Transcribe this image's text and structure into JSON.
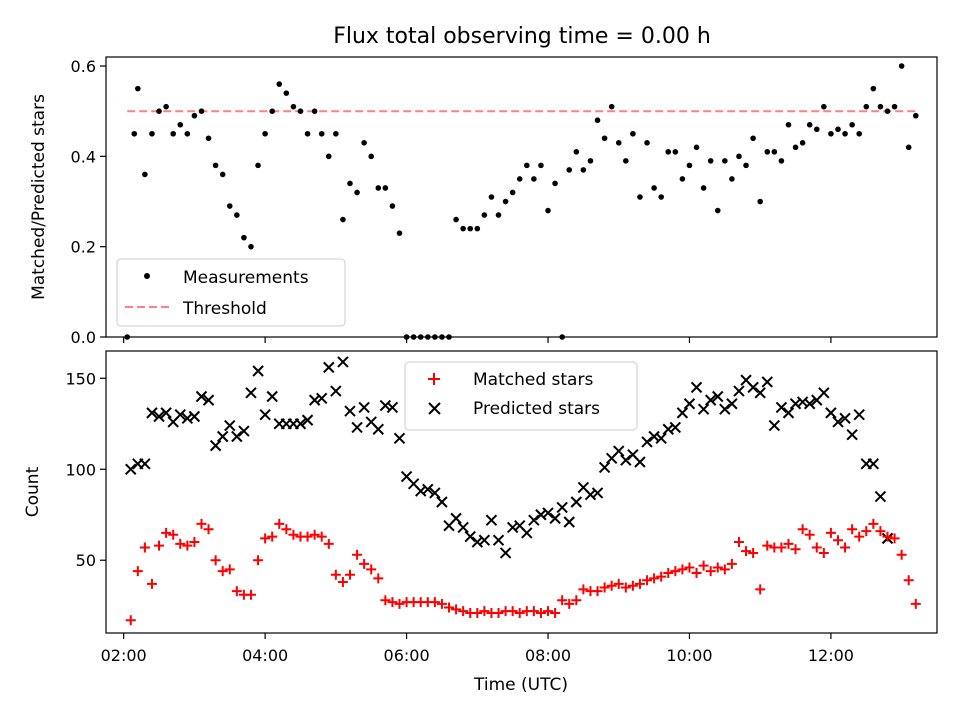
{
  "chart_data": [
    {
      "type": "scatter",
      "title": "Flux total observing time = 0.00 h",
      "xlabel": "",
      "ylabel": "Matched/Predicted stars",
      "xlim": [
        2.0,
        13.0
      ],
      "ylim": [
        0.0,
        0.62
      ],
      "yticks": [
        {
          "value": 0.0,
          "label": "0.0"
        },
        {
          "value": 0.2,
          "label": "0.2"
        },
        {
          "value": 0.4,
          "label": "0.4"
        },
        {
          "value": 0.6,
          "label": "0.6"
        }
      ],
      "legend_position": "lower-left",
      "series": [
        {
          "name": "Measurements",
          "marker": "dot",
          "color": "#000000",
          "x": [
            2.05,
            2.15,
            2.2,
            2.3,
            2.4,
            2.5,
            2.6,
            2.7,
            2.8,
            2.9,
            3.0,
            3.1,
            3.2,
            3.3,
            3.4,
            3.5,
            3.6,
            3.7,
            3.8,
            3.9,
            4.0,
            4.1,
            4.2,
            4.3,
            4.4,
            4.5,
            4.6,
            4.7,
            4.8,
            4.9,
            5.0,
            5.1,
            5.2,
            5.3,
            5.4,
            5.5,
            5.6,
            5.7,
            5.8,
            5.9,
            6.0,
            6.1,
            6.2,
            6.3,
            6.4,
            6.5,
            6.6,
            6.7,
            6.8,
            6.9,
            7.0,
            7.1,
            7.2,
            7.3,
            7.4,
            7.5,
            7.6,
            7.7,
            7.8,
            7.9,
            8.0,
            8.1,
            8.2,
            8.3,
            8.4,
            8.5,
            8.6,
            8.7,
            8.8,
            8.9,
            9.0,
            9.1,
            9.2,
            9.3,
            9.4,
            9.5,
            9.6,
            9.7,
            9.8,
            9.9,
            10.0,
            10.1,
            10.2,
            10.3,
            10.4,
            10.5,
            10.6,
            10.7,
            10.8,
            10.9,
            11.0,
            11.1,
            11.2,
            11.3,
            11.4,
            11.5,
            11.6,
            11.7,
            11.8,
            11.9,
            12.0,
            12.1,
            12.2,
            12.3,
            12.4,
            12.5,
            12.6,
            12.7,
            12.8,
            12.9,
            13.0,
            13.1,
            13.2
          ],
          "y": [
            0.0,
            0.45,
            0.55,
            0.36,
            0.45,
            0.5,
            0.51,
            0.45,
            0.47,
            0.45,
            0.49,
            0.5,
            0.44,
            0.38,
            0.36,
            0.29,
            0.27,
            0.22,
            0.2,
            0.38,
            0.45,
            0.5,
            0.56,
            0.54,
            0.51,
            0.5,
            0.45,
            0.5,
            0.45,
            0.4,
            0.45,
            0.26,
            0.34,
            0.32,
            0.43,
            0.4,
            0.33,
            0.33,
            0.29,
            0.23,
            0.0,
            0.0,
            0.0,
            0.0,
            0.0,
            0.0,
            0.0,
            0.26,
            0.24,
            0.24,
            0.24,
            0.27,
            0.31,
            0.27,
            0.3,
            0.32,
            0.35,
            0.38,
            0.35,
            0.38,
            0.28,
            0.34,
            0.0,
            0.37,
            0.41,
            0.37,
            0.39,
            0.48,
            0.44,
            0.51,
            0.43,
            0.39,
            0.45,
            0.31,
            0.43,
            0.33,
            0.31,
            0.41,
            0.41,
            0.35,
            0.38,
            0.42,
            0.33,
            0.39,
            0.28,
            0.39,
            0.35,
            0.4,
            0.38,
            0.44,
            0.3,
            0.41,
            0.41,
            0.39,
            0.47,
            0.42,
            0.43,
            0.47,
            0.46,
            0.51,
            0.45,
            0.46,
            0.45,
            0.47,
            0.45,
            0.51,
            0.55,
            0.51,
            0.5,
            0.51,
            0.6,
            0.42,
            0.49
          ]
        },
        {
          "name": "Threshold",
          "line_style": "dashed",
          "color": "#ff7f7f",
          "x": [
            2.05,
            13.2
          ],
          "y": [
            0.5,
            0.5
          ]
        }
      ]
    },
    {
      "type": "scatter",
      "xlabel": "Time (UTC)",
      "ylabel": "Count",
      "xlim": [
        1.75,
        13.5
      ],
      "ylim": [
        10,
        165
      ],
      "xticks": [
        {
          "value": 2,
          "label": "02:00"
        },
        {
          "value": 4,
          "label": "04:00"
        },
        {
          "value": 6,
          "label": "06:00"
        },
        {
          "value": 8,
          "label": "08:00"
        },
        {
          "value": 10,
          "label": "10:00"
        },
        {
          "value": 12,
          "label": "12:00"
        }
      ],
      "yticks": [
        {
          "value": 50,
          "label": "50"
        },
        {
          "value": 100,
          "label": "100"
        },
        {
          "value": 150,
          "label": "150"
        }
      ],
      "legend_position": "top-center",
      "x": [
        2.1,
        2.2,
        2.3,
        2.4,
        2.5,
        2.6,
        2.7,
        2.8,
        2.9,
        3.0,
        3.1,
        3.2,
        3.3,
        3.4,
        3.5,
        3.6,
        3.7,
        3.8,
        3.9,
        4.0,
        4.1,
        4.2,
        4.3,
        4.4,
        4.5,
        4.6,
        4.7,
        4.8,
        4.9,
        5.0,
        5.1,
        5.2,
        5.3,
        5.4,
        5.5,
        5.6,
        5.7,
        5.8,
        5.9,
        6.0,
        6.1,
        6.2,
        6.3,
        6.4,
        6.5,
        6.6,
        6.7,
        6.8,
        6.9,
        7.0,
        7.1,
        7.2,
        7.3,
        7.4,
        7.5,
        7.6,
        7.7,
        7.8,
        7.9,
        8.0,
        8.1,
        8.2,
        8.3,
        8.4,
        8.5,
        8.6,
        8.7,
        8.8,
        8.9,
        9.0,
        9.1,
        9.2,
        9.3,
        9.4,
        9.5,
        9.6,
        9.7,
        9.8,
        9.9,
        10.0,
        10.1,
        10.2,
        10.3,
        10.4,
        10.5,
        10.6,
        10.7,
        10.8,
        10.9,
        11.0,
        11.1,
        11.2,
        11.3,
        11.4,
        11.5,
        11.6,
        11.7,
        11.8,
        11.9,
        12.0,
        12.1,
        12.2,
        12.3,
        12.4,
        12.5,
        12.6,
        12.7,
        12.8,
        12.9,
        13.0,
        13.1,
        13.2
      ],
      "series": [
        {
          "name": "Matched stars",
          "marker": "plus",
          "color": "#ff0000",
          "values": [
            17,
            44,
            57,
            37,
            58,
            65,
            64,
            59,
            58,
            60,
            70,
            67,
            50,
            44,
            45,
            33,
            31,
            31,
            50,
            62,
            63,
            70,
            67,
            64,
            63,
            63,
            64,
            63,
            59,
            42,
            38,
            42,
            53,
            48,
            45,
            40,
            28,
            27,
            26,
            27,
            27,
            27,
            27,
            27,
            26,
            24,
            23,
            22,
            21,
            21,
            22,
            21,
            21,
            22,
            22,
            21,
            22,
            22,
            21,
            22,
            21,
            28,
            26,
            28,
            34,
            33,
            33,
            35,
            36,
            37,
            35,
            36,
            37,
            39,
            40,
            41,
            43,
            44,
            45,
            46,
            43,
            47,
            44,
            46,
            45,
            48,
            60,
            55,
            54,
            34,
            58,
            57,
            57,
            59,
            56,
            67,
            64,
            57,
            54,
            65,
            61,
            57,
            67,
            63,
            66,
            70,
            66,
            63,
            62,
            53,
            39,
            26
          ]
        },
        {
          "name": "Predicted stars",
          "marker": "x",
          "color": "#000000",
          "values": [
            100,
            103,
            103,
            131,
            129,
            131,
            126,
            130,
            128,
            129,
            140,
            138,
            113,
            118,
            124,
            118,
            121,
            142,
            154,
            130,
            140,
            125,
            125,
            125,
            125,
            127,
            138,
            139,
            156,
            143,
            159,
            132,
            123,
            134,
            126,
            122,
            135,
            134,
            117,
            96,
            92,
            88,
            89,
            87,
            82,
            69,
            73,
            68,
            63,
            60,
            61,
            72,
            61,
            54,
            68,
            69,
            65,
            72,
            75,
            76,
            73,
            79,
            71,
            82,
            90,
            86,
            87,
            101,
            106,
            110,
            105,
            108,
            104,
            115,
            118,
            117,
            122,
            123,
            131,
            136,
            145,
            133,
            138,
            140,
            133,
            136,
            143,
            149,
            145,
            142,
            148,
            124,
            134,
            131,
            136,
            137,
            136,
            138,
            142,
            131,
            126,
            128,
            119,
            130,
            103,
            103,
            85,
            62
          ]
        }
      ]
    }
  ]
}
